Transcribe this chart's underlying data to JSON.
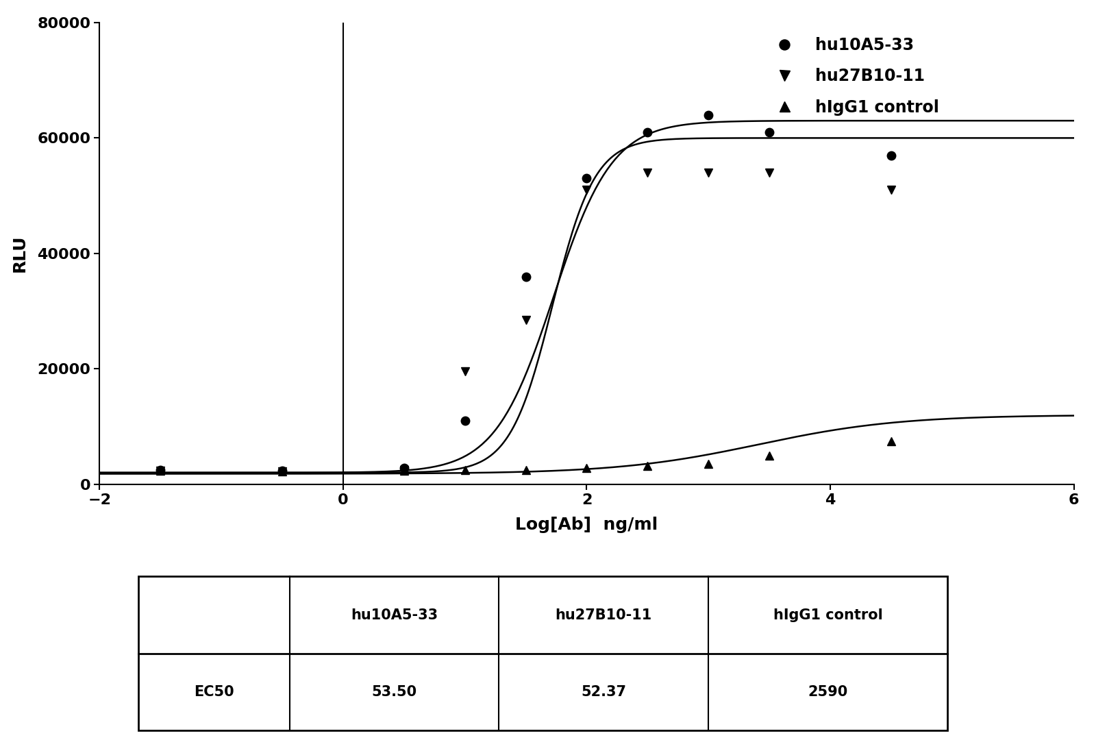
{
  "series": [
    {
      "name": "hu10A5-33",
      "marker": "o",
      "color": "#000000",
      "ec50_log": 1.728,
      "bottom": 2000,
      "top": 63000,
      "hill": 1.8,
      "data_x": [
        -1.5,
        -0.5,
        0.5,
        1.0,
        1.5,
        2.0,
        2.5,
        3.0,
        3.5,
        4.5
      ],
      "data_y": [
        2500,
        2300,
        2800,
        11000,
        36000,
        53000,
        61000,
        64000,
        61000,
        57000
      ]
    },
    {
      "name": "hu27B10-11",
      "marker": "v",
      "color": "#000000",
      "ec50_log": 1.719,
      "bottom": 2000,
      "top": 60000,
      "hill": 2.5,
      "data_x": [
        -1.5,
        -0.5,
        0.5,
        1.0,
        1.5,
        2.0,
        2.5,
        3.0,
        3.5,
        4.5
      ],
      "data_y": [
        2300,
        2200,
        2500,
        19500,
        28500,
        51000,
        54000,
        54000,
        54000,
        51000
      ]
    },
    {
      "name": "hIgG1 control",
      "marker": "^",
      "color": "#000000",
      "ec50_log": 3.413,
      "bottom": 1800,
      "top": 12000,
      "hill": 0.75,
      "data_x": [
        -1.5,
        -0.5,
        0.5,
        1.0,
        1.5,
        2.0,
        2.5,
        3.0,
        3.5,
        4.5
      ],
      "data_y": [
        2300,
        2200,
        2300,
        2400,
        2500,
        2800,
        3200,
        3500,
        5000,
        7500
      ]
    }
  ],
  "xlabel": "Log[Ab]  ng/ml",
  "ylabel": "RLU",
  "xlim": [
    -2,
    6
  ],
  "ylim": [
    0,
    80000
  ],
  "yticks": [
    0,
    20000,
    40000,
    60000,
    80000
  ],
  "xticks": [
    -2,
    0,
    2,
    4,
    6
  ],
  "table_headers": [
    "",
    "hu10A5-33",
    "hu27B10-11",
    "hIgG1 control"
  ],
  "table_rows": [
    [
      "EC50",
      "53.50",
      "52.37",
      "2590"
    ]
  ],
  "background_color": "#ffffff",
  "marker_size": 9,
  "linewidth": 1.8
}
